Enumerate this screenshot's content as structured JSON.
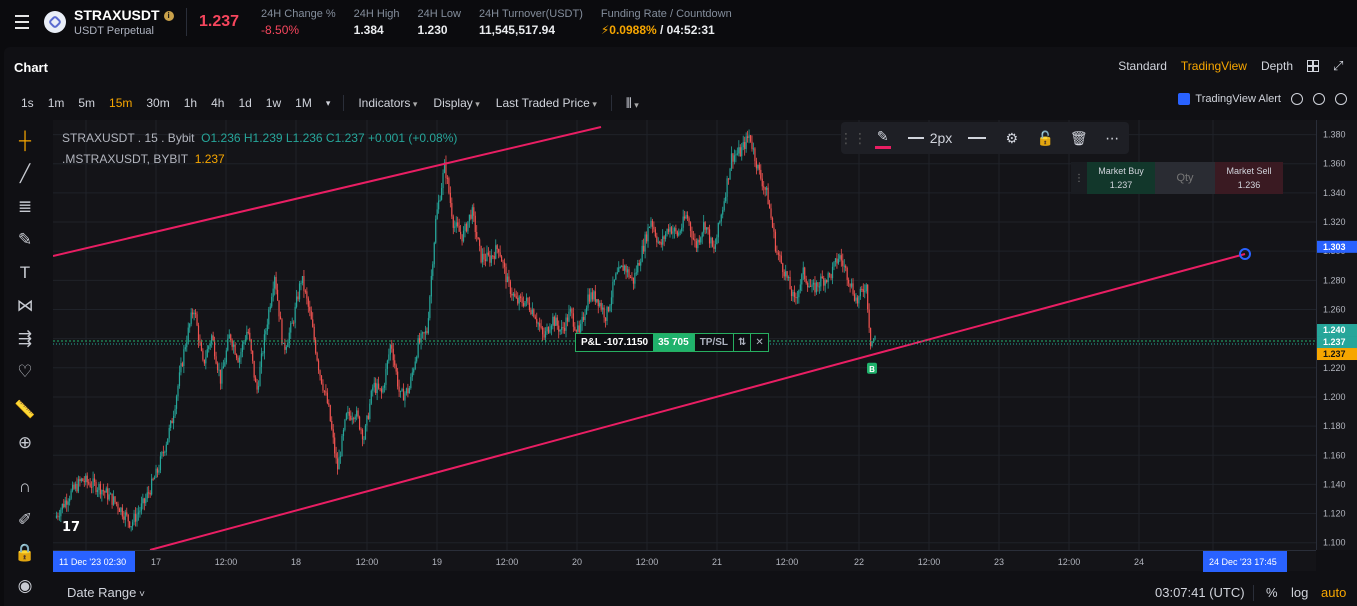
{
  "ticker": {
    "symbol": "STRAXUSDT",
    "info_icon": "i",
    "contract": "USDT Perpetual",
    "last_price": "1.237",
    "stats": [
      {
        "label": "24H Change %",
        "value": "-8.50%",
        "tone": "red"
      },
      {
        "label": "24H High",
        "value": "1.384",
        "tone": "white"
      },
      {
        "label": "24H Low",
        "value": "1.230",
        "tone": "white"
      },
      {
        "label": "24H Turnover(USDT)",
        "value": "11,545,517.94",
        "tone": "white"
      }
    ],
    "funding": {
      "label": "Funding Rate / Countdown",
      "rate": "0.0988%",
      "countdown": "/ 04:52:31"
    }
  },
  "chart_header": {
    "title": "Chart",
    "views": [
      "Standard",
      "TradingView",
      "Depth"
    ],
    "active_view": "TradingView"
  },
  "toolbar": {
    "timeframes": [
      "1s",
      "1m",
      "5m",
      "15m",
      "30m",
      "1h",
      "4h",
      "1d",
      "1w",
      "1M"
    ],
    "active_timeframe": "15m",
    "menus": [
      "Indicators",
      "Display",
      "Last Traded Price"
    ],
    "alert_label": "TradingView Alert"
  },
  "legend": {
    "line1_prefix": "STRAXUSDT . 15 . Bybit",
    "ohlc": "O1.236 H1.239 L1.236 C1.237 +0.001 (+0.08%)",
    "line2_prefix": ".MSTRAXUSDT, BYBIT",
    "mark": "1.237"
  },
  "drawing_bar": {
    "width_label": "2px"
  },
  "trade_widget": {
    "buy_label": "Market Buy",
    "buy_price": "1.237",
    "qty_placeholder": "Qty",
    "sell_label": "Market Sell",
    "sell_price": "1.236"
  },
  "position": {
    "pnl": "P&L -107.1150",
    "size": "35 705",
    "tpsl": "TP/SL",
    "close": "✕",
    "marker": "B"
  },
  "colors": {
    "up": "#26a69a",
    "down": "#ef5350",
    "trendline": "#e91e63",
    "accent": "#f7a600",
    "position": "#20b26c"
  },
  "chart_data": {
    "type": "candlestick",
    "symbol": "STRAXUSDT",
    "interval": "15",
    "exchange": "Bybit",
    "y_ticks": [
      "1.380",
      "1.360",
      "1.340",
      "1.320",
      "1.300",
      "1.280",
      "1.260",
      "1.240",
      "1.220",
      "1.200",
      "1.180",
      "1.160",
      "1.140",
      "1.120",
      "1.100"
    ],
    "ylim": [
      1.095,
      1.39
    ],
    "price_labels": [
      {
        "value": "1.303",
        "kind": "alert-line"
      },
      {
        "value": "1.240",
        "kind": "mark"
      },
      {
        "value": "1.237",
        "kind": "last"
      },
      {
        "value": "1.237",
        "kind": "position"
      }
    ],
    "x_ticks": [
      "11 Dec '23  02:30",
      "17",
      "12:00",
      "18",
      "12:00",
      "19",
      "12:00",
      "20",
      "12:00",
      "21",
      "12:00",
      "22",
      "12:00",
      "23",
      "12:00",
      "24",
      "24 Dec '23  17:45"
    ],
    "price_path": [
      [
        0,
        1.117
      ],
      [
        0.015,
        1.132
      ],
      [
        0.03,
        1.143
      ],
      [
        0.05,
        1.138
      ],
      [
        0.07,
        1.126
      ],
      [
        0.085,
        1.113
      ],
      [
        0.1,
        1.128
      ],
      [
        0.115,
        1.15
      ],
      [
        0.13,
        1.182
      ],
      [
        0.145,
        1.235
      ],
      [
        0.155,
        1.262
      ],
      [
        0.165,
        1.222
      ],
      [
        0.175,
        1.242
      ],
      [
        0.185,
        1.211
      ],
      [
        0.195,
        1.243
      ],
      [
        0.205,
        1.226
      ],
      [
        0.215,
        1.247
      ],
      [
        0.225,
        1.203
      ],
      [
        0.235,
        1.245
      ],
      [
        0.245,
        1.285
      ],
      [
        0.255,
        1.232
      ],
      [
        0.265,
        1.25
      ],
      [
        0.275,
        1.282
      ],
      [
        0.285,
        1.255
      ],
      [
        0.295,
        1.218
      ],
      [
        0.305,
        1.193
      ],
      [
        0.315,
        1.15
      ],
      [
        0.325,
        1.186
      ],
      [
        0.335,
        1.19
      ],
      [
        0.345,
        1.172
      ],
      [
        0.355,
        1.208
      ],
      [
        0.365,
        1.202
      ],
      [
        0.375,
        1.238
      ],
      [
        0.385,
        1.2
      ],
      [
        0.395,
        1.205
      ],
      [
        0.405,
        1.236
      ],
      [
        0.415,
        1.245
      ],
      [
        0.425,
        1.322
      ],
      [
        0.435,
        1.359
      ],
      [
        0.445,
        1.318
      ],
      [
        0.455,
        1.31
      ],
      [
        0.465,
        1.328
      ],
      [
        0.475,
        1.296
      ],
      [
        0.485,
        1.295
      ],
      [
        0.495,
        1.303
      ],
      [
        0.505,
        1.278
      ],
      [
        0.515,
        1.265
      ],
      [
        0.525,
        1.266
      ],
      [
        0.535,
        1.258
      ],
      [
        0.545,
        1.24
      ],
      [
        0.555,
        1.254
      ],
      [
        0.565,
        1.245
      ],
      [
        0.575,
        1.258
      ],
      [
        0.585,
        1.242
      ],
      [
        0.595,
        1.27
      ],
      [
        0.605,
        1.268
      ],
      [
        0.615,
        1.255
      ],
      [
        0.625,
        1.281
      ],
      [
        0.635,
        1.29
      ],
      [
        0.645,
        1.279
      ],
      [
        0.655,
        1.3
      ],
      [
        0.665,
        1.322
      ],
      [
        0.675,
        1.303
      ],
      [
        0.685,
        1.317
      ],
      [
        0.695,
        1.311
      ],
      [
        0.705,
        1.325
      ],
      [
        0.715,
        1.303
      ],
      [
        0.725,
        1.32
      ],
      [
        0.735,
        1.299
      ],
      [
        0.745,
        1.33
      ],
      [
        0.755,
        1.365
      ],
      [
        0.765,
        1.368
      ],
      [
        0.775,
        1.38
      ],
      [
        0.785,
        1.355
      ],
      [
        0.795,
        1.338
      ],
      [
        0.805,
        1.3
      ],
      [
        0.815,
        1.285
      ],
      [
        0.825,
        1.265
      ],
      [
        0.835,
        1.285
      ],
      [
        0.845,
        1.273
      ],
      [
        0.855,
        1.28
      ],
      [
        0.865,
        1.283
      ],
      [
        0.875,
        1.297
      ],
      [
        0.885,
        1.283
      ],
      [
        0.895,
        1.265
      ],
      [
        0.905,
        1.278
      ],
      [
        0.91,
        1.238
      ],
      [
        0.915,
        1.24
      ]
    ]
  }
}
